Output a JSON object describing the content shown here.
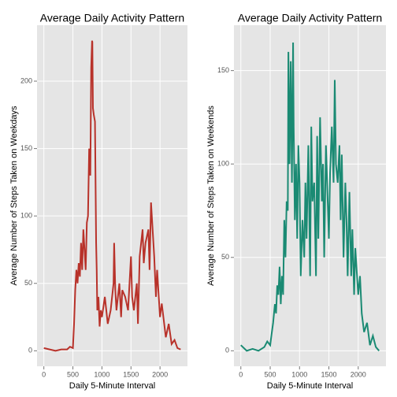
{
  "chart_data": [
    {
      "type": "line",
      "title": "Average Daily Activity Pattern",
      "x_label": "Daily 5-Minute Interval",
      "y_label": "Average Number of Steps Taken on Weekdays",
      "x": [
        0,
        100,
        200,
        300,
        400,
        450,
        500,
        520,
        540,
        560,
        580,
        600,
        620,
        640,
        660,
        680,
        700,
        720,
        740,
        760,
        780,
        800,
        815,
        830,
        835,
        845,
        860,
        880,
        900,
        910,
        920,
        940,
        960,
        980,
        1000,
        1050,
        1100,
        1150,
        1200,
        1210,
        1230,
        1250,
        1300,
        1330,
        1350,
        1400,
        1450,
        1500,
        1520,
        1550,
        1600,
        1620,
        1650,
        1700,
        1720,
        1750,
        1800,
        1820,
        1845,
        1900,
        1930,
        1950,
        2000,
        2030,
        2100,
        2150,
        2200,
        2250,
        2300,
        2355
      ],
      "series": [
        {
          "color": "#b8322a",
          "values": [
            2,
            1,
            0,
            1,
            1,
            3,
            2,
            20,
            45,
            60,
            50,
            65,
            55,
            80,
            60,
            90,
            75,
            60,
            95,
            100,
            150,
            130,
            210,
            230,
            229,
            180,
            175,
            170,
            80,
            60,
            30,
            40,
            18,
            30,
            25,
            40,
            20,
            30,
            50,
            80,
            45,
            30,
            50,
            25,
            45,
            40,
            30,
            70,
            40,
            30,
            50,
            20,
            70,
            90,
            65,
            80,
            90,
            60,
            110,
            70,
            40,
            60,
            25,
            35,
            10,
            20,
            5,
            8,
            2,
            1
          ]
        }
      ],
      "xlim": [
        -117.75,
        2472.75
      ],
      "xticks": [
        0,
        500,
        1000,
        1500,
        2000
      ],
      "ylim": [
        -11.5,
        241.5
      ],
      "yticks": [
        0,
        50,
        100,
        150,
        200
      ],
      "grid": true
    },
    {
      "type": "line",
      "title": "Average Daily Activity Pattern",
      "x_label": "Daily 5-Minute Interval",
      "y_label": "Average Number of Steps Taken on Weekends",
      "x": [
        0,
        100,
        200,
        300,
        400,
        450,
        500,
        520,
        550,
        580,
        600,
        620,
        640,
        660,
        680,
        700,
        720,
        740,
        760,
        780,
        800,
        810,
        830,
        850,
        870,
        890,
        900,
        920,
        940,
        960,
        980,
        1000,
        1020,
        1050,
        1080,
        1100,
        1120,
        1150,
        1180,
        1200,
        1220,
        1250,
        1280,
        1300,
        1320,
        1350,
        1380,
        1400,
        1420,
        1450,
        1480,
        1500,
        1520,
        1550,
        1580,
        1600,
        1620,
        1650,
        1680,
        1700,
        1720,
        1750,
        1780,
        1800,
        1820,
        1850,
        1880,
        1900,
        1930,
        1950,
        2000,
        2030,
        2060,
        2100,
        2150,
        2200,
        2250,
        2300,
        2355
      ],
      "series": [
        {
          "color": "#1a8a73",
          "values": [
            3,
            0,
            1,
            0,
            2,
            5,
            3,
            8,
            15,
            25,
            20,
            35,
            30,
            45,
            25,
            40,
            30,
            70,
            50,
            80,
            75,
            160,
            100,
            155,
            90,
            165,
            120,
            70,
            100,
            60,
            110,
            90,
            40,
            70,
            50,
            90,
            60,
            110,
            40,
            120,
            80,
            90,
            40,
            115,
            60,
            125,
            80,
            100,
            50,
            110,
            80,
            60,
            95,
            120,
            90,
            145,
            100,
            90,
            110,
            70,
            105,
            50,
            90,
            70,
            40,
            85,
            40,
            65,
            30,
            55,
            30,
            40,
            20,
            10,
            15,
            3,
            8,
            2,
            0
          ]
        }
      ],
      "xlim": [
        -117.75,
        2472.75
      ],
      "xticks": [
        0,
        500,
        1000,
        1500,
        2000
      ],
      "ylim": [
        -8.3,
        174.3
      ],
      "yticks": [
        0,
        50,
        100,
        150
      ],
      "grid": true
    }
  ]
}
